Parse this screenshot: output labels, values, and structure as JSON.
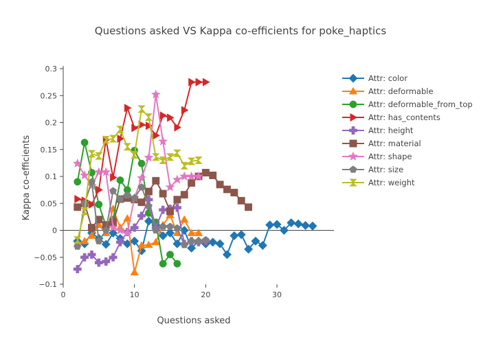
{
  "chart_data": {
    "type": "line",
    "title": "Questions asked VS Kappa co-efficients for poke_haptics",
    "xlabel": "Questions asked",
    "ylabel": "Kappa co-efficients",
    "xlim": [
      0,
      38
    ],
    "ylim": [
      -0.1,
      0.3
    ],
    "xticks": [
      0,
      10,
      20,
      30
    ],
    "yticks": [
      -0.1,
      -0.05,
      0,
      0.05,
      0.1,
      0.15,
      0.2,
      0.25,
      0.3
    ],
    "ytick_labels": [
      "−0.1",
      "−0.05",
      "0",
      "0.05",
      "0.1",
      "0.15",
      "0.2",
      "0.25",
      "0.3"
    ],
    "xtick_labels": [
      "0",
      "10",
      "20",
      "30"
    ],
    "grid": false,
    "legend": "right",
    "series": [
      {
        "name": "Attr: color",
        "color": "#1f77b4",
        "marker": "diamond",
        "x": [
          2,
          3,
          4,
          5,
          6,
          7,
          8,
          9,
          10,
          11,
          12,
          13,
          14,
          15,
          16,
          17,
          18,
          19,
          20,
          21,
          22,
          23,
          24,
          25,
          26,
          27,
          28,
          29,
          30,
          31,
          32,
          33,
          34,
          35
        ],
        "y": [
          -0.02,
          -0.025,
          -0.005,
          -0.015,
          -0.026,
          -0.005,
          -0.015,
          -0.025,
          -0.02,
          -0.038,
          0.017,
          0.01,
          -0.01,
          -0.005,
          -0.025,
          0.0,
          -0.033,
          -0.02,
          -0.025,
          -0.022,
          -0.025,
          -0.045,
          -0.01,
          -0.008,
          -0.035,
          -0.02,
          -0.028,
          0.01,
          0.011,
          0.0,
          0.014,
          0.012,
          0.009,
          0.008
        ]
      },
      {
        "name": "Attr: deformable",
        "color": "#ff7f0e",
        "marker": "triangle-up",
        "x": [
          2,
          3,
          4,
          5,
          6,
          7,
          8,
          9,
          10,
          11,
          12,
          13,
          14,
          15,
          16,
          17,
          18,
          19
        ],
        "y": [
          -0.025,
          -0.02,
          -0.01,
          0.01,
          -0.005,
          0.04,
          0.005,
          0.022,
          -0.078,
          -0.028,
          -0.027,
          -0.022,
          0.01,
          0.028,
          -0.005,
          0.02,
          -0.005,
          -0.005
        ]
      },
      {
        "name": "Attr: deformable_from_top",
        "color": "#2ca02c",
        "marker": "circle",
        "x": [
          2,
          3,
          4,
          5,
          6,
          7,
          8,
          9,
          10,
          11,
          12,
          13,
          14,
          15,
          16
        ],
        "y": [
          0.09,
          0.163,
          0.107,
          0.048,
          0.008,
          0.02,
          0.093,
          0.075,
          0.148,
          0.124,
          0.032,
          0.015,
          -0.062,
          -0.045,
          -0.062
        ]
      },
      {
        "name": "Attr: has_contents",
        "color": "#d62728",
        "marker": "triangle-right",
        "x": [
          2,
          3,
          4,
          5,
          6,
          7,
          8,
          9,
          10,
          11,
          12,
          13,
          14,
          15,
          16,
          17,
          18,
          19,
          20
        ],
        "y": [
          0.058,
          0.055,
          0.048,
          0.075,
          0.168,
          0.098,
          0.17,
          0.227,
          0.19,
          0.196,
          0.194,
          0.176,
          0.213,
          0.209,
          0.191,
          0.223,
          0.275,
          0.275,
          0.275
        ]
      },
      {
        "name": "Attr: height",
        "color": "#9467bd",
        "marker": "cross",
        "x": [
          2,
          3,
          4,
          5,
          6,
          7,
          8,
          9,
          10,
          11,
          12,
          13,
          14,
          15,
          16,
          17,
          18,
          19,
          20
        ],
        "y": [
          -0.072,
          -0.05,
          -0.045,
          -0.06,
          -0.058,
          -0.05,
          -0.022,
          -0.003,
          0.005,
          0.027,
          0.057,
          0.005,
          0.038,
          0.04,
          0.042,
          -0.025,
          -0.02,
          -0.022,
          -0.02
        ]
      },
      {
        "name": "Attr: material",
        "color": "#8c564b",
        "marker": "square",
        "x": [
          2,
          3,
          4,
          5,
          6,
          7,
          8,
          9,
          10,
          11,
          12,
          13,
          14,
          15,
          16,
          17,
          18,
          19,
          20,
          21,
          22,
          23,
          24,
          25,
          26
        ],
        "y": [
          0.043,
          0.05,
          0.005,
          0.02,
          0.01,
          0.015,
          0.058,
          0.06,
          0.057,
          0.052,
          0.072,
          0.092,
          0.068,
          0.035,
          0.057,
          0.066,
          0.088,
          0.1,
          0.107,
          0.102,
          0.085,
          0.076,
          0.07,
          0.055,
          0.043
        ]
      },
      {
        "name": "Attr: shape",
        "color": "#e377c2",
        "marker": "star",
        "x": [
          2,
          3,
          4,
          5,
          6,
          7,
          8,
          9,
          10,
          11,
          12,
          13,
          14,
          15,
          16,
          17,
          18,
          19
        ],
        "y": [
          0.124,
          0.102,
          0.083,
          0.108,
          0.108,
          0.005,
          0.0,
          -0.005,
          0.06,
          0.097,
          0.135,
          0.252,
          0.165,
          0.08,
          0.094,
          0.1,
          0.1,
          0.1
        ]
      },
      {
        "name": "Attr: size",
        "color": "#7f7f7f",
        "marker": "pentagon",
        "x": [
          2,
          3,
          4,
          5,
          6,
          7,
          8,
          9,
          10,
          11,
          12,
          13,
          14,
          15,
          16,
          17,
          18,
          19,
          20
        ],
        "y": [
          -0.03,
          0.05,
          0.09,
          -0.02,
          0.0,
          0.073,
          0.058,
          0.065,
          0.06,
          0.08,
          0.045,
          0.0,
          0.007,
          0.007,
          0.004,
          -0.027,
          -0.02,
          -0.02,
          -0.018
        ]
      },
      {
        "name": "Attr: weight",
        "color": "#bcbd22",
        "marker": "hourglass",
        "x": [
          2,
          3,
          4,
          5,
          6,
          7,
          8,
          9,
          10,
          11,
          12,
          13,
          14,
          15,
          16,
          17,
          18,
          19
        ],
        "y": [
          -0.018,
          0.035,
          0.142,
          0.138,
          0.168,
          0.17,
          0.187,
          0.155,
          0.14,
          0.225,
          0.21,
          0.136,
          0.13,
          0.136,
          0.143,
          0.12,
          0.128,
          0.13
        ]
      }
    ]
  }
}
